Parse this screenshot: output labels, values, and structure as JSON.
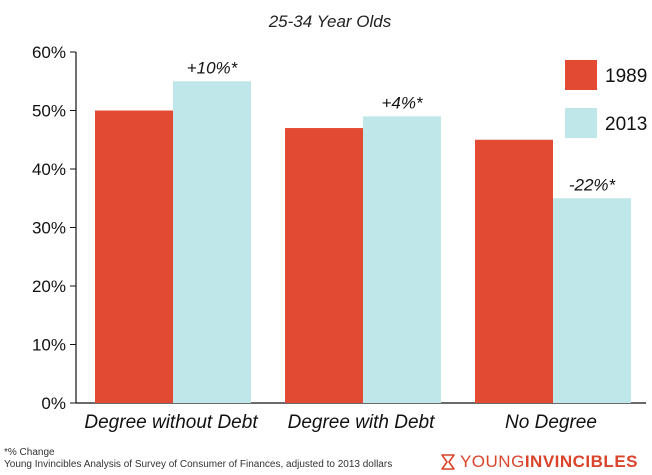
{
  "chart_data": {
    "type": "bar",
    "title": "25-34 Year Olds",
    "categories": [
      "Degree without Debt",
      "Degree with Debt",
      "No Degree"
    ],
    "series": [
      {
        "name": "1989",
        "values": [
          50,
          47,
          45
        ],
        "color": "#e34a33"
      },
      {
        "name": "2013",
        "values": [
          55,
          49,
          35
        ],
        "color": "#bfe6e8"
      }
    ],
    "annotations": [
      "+10%*",
      "+4%*",
      "-22%*"
    ],
    "ylim": [
      0,
      60
    ],
    "yticks": [
      "0%",
      "10%",
      "20%",
      "30%",
      "40%",
      "50%",
      "60%"
    ],
    "ytick_values": [
      0,
      10,
      20,
      30,
      40,
      50,
      60
    ],
    "legend_position": "top-right",
    "grid": false
  },
  "footer": {
    "note": "*% Change",
    "source": "Young Invincibles Analysis of Survey of Consumer of Finances, adjusted to 2013 dollars"
  },
  "logo": {
    "part1": "YOUNG",
    "part2": "INVINCIBLES",
    "icon": "hourglass-icon",
    "color": "#d9442b"
  }
}
